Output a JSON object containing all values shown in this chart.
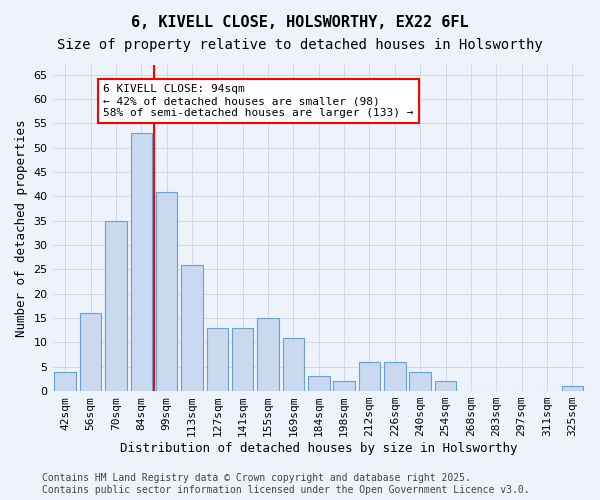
{
  "title1": "6, KIVELL CLOSE, HOLSWORTHY, EX22 6FL",
  "title2": "Size of property relative to detached houses in Holsworthy",
  "xlabel": "Distribution of detached houses by size in Holsworthy",
  "ylabel": "Number of detached properties",
  "categories": [
    "42sqm",
    "56sqm",
    "70sqm",
    "84sqm",
    "99sqm",
    "113sqm",
    "127sqm",
    "141sqm",
    "155sqm",
    "169sqm",
    "184sqm",
    "198sqm",
    "212sqm",
    "226sqm",
    "240sqm",
    "254sqm",
    "268sqm",
    "283sqm",
    "297sqm",
    "311sqm",
    "325sqm"
  ],
  "values": [
    4,
    16,
    35,
    53,
    41,
    26,
    13,
    13,
    15,
    11,
    3,
    2,
    6,
    6,
    4,
    2,
    0,
    0,
    0,
    0,
    1
  ],
  "bar_color": "#c9d9f0",
  "bar_edge_color": "#6aa0d4",
  "grid_color": "#d0d8e8",
  "bg_color": "#eef2fa",
  "vline_x": 3.5,
  "vline_color": "red",
  "annotation_text": "6 KIVELL CLOSE: 94sqm\n← 42% of detached houses are smaller (98)\n58% of semi-detached houses are larger (133) →",
  "annotation_box_color": "white",
  "annotation_box_edge": "red",
  "ylim": [
    0,
    67
  ],
  "yticks": [
    0,
    5,
    10,
    15,
    20,
    25,
    30,
    35,
    40,
    45,
    50,
    55,
    60,
    65
  ],
  "footer": "Contains HM Land Registry data © Crown copyright and database right 2025.\nContains public sector information licensed under the Open Government Licence v3.0.",
  "title1_fontsize": 11,
  "title2_fontsize": 10,
  "xlabel_fontsize": 9,
  "ylabel_fontsize": 9,
  "tick_fontsize": 8,
  "annotation_fontsize": 8,
  "footer_fontsize": 7
}
